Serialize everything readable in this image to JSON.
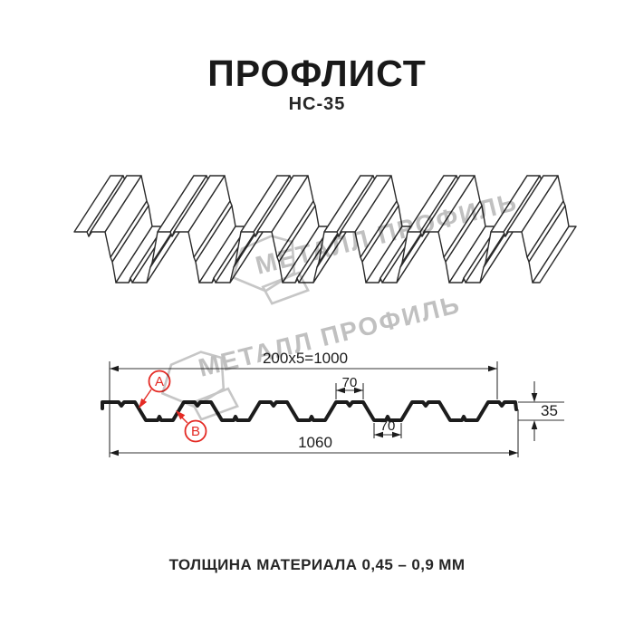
{
  "header": {
    "title": "ПРОФЛИСТ",
    "subtitle": "НС-35"
  },
  "footer": {
    "text": "ТОЛЩИНА МАТЕРИАЛА 0,45 – 0,9 ММ"
  },
  "watermark": {
    "text": "МЕТАЛЛ ПРОФИЛЬ"
  },
  "diagram": {
    "dims": {
      "cover_width": "200x5=1000",
      "rib_top_width": "70",
      "rib_bottom_width": "70",
      "profile_height": "35",
      "overall_width": "1060"
    },
    "callouts": {
      "a": "A",
      "b": "B"
    }
  },
  "colors": {
    "line": "#262626",
    "accent_red": "#e42a24",
    "watermark_gray": "#c0c0c0"
  }
}
